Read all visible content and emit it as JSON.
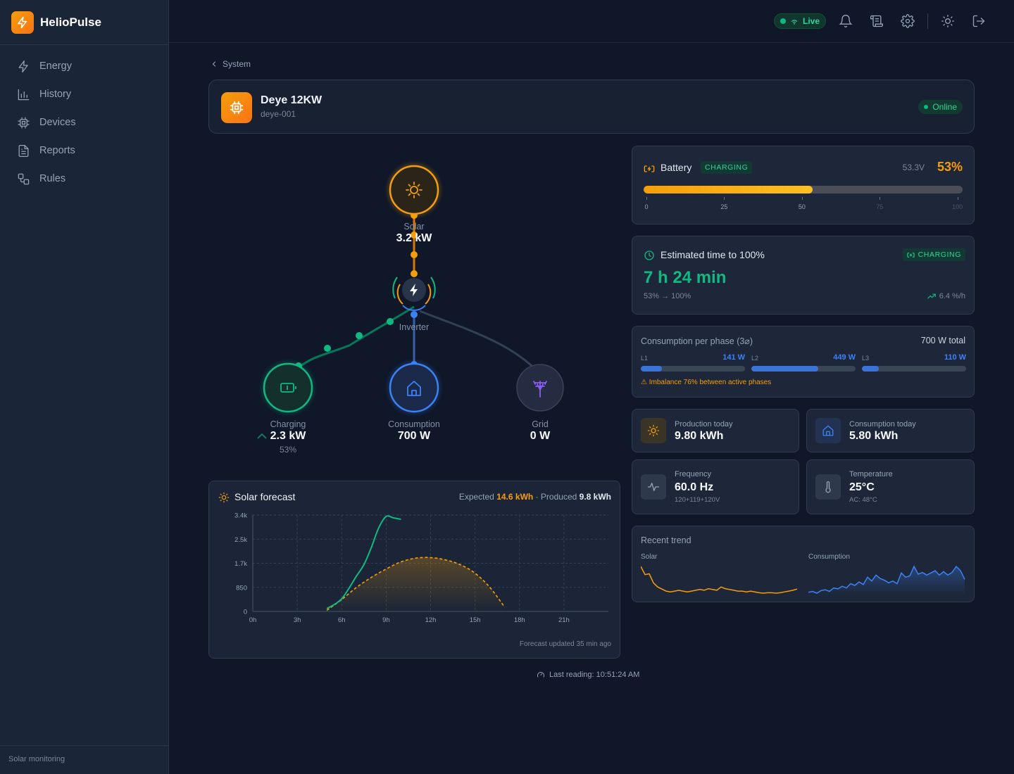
{
  "app": {
    "name": "HelioPulse",
    "footer": "Solar monitoring"
  },
  "colors": {
    "accent": "#f59e0b",
    "green": "#10b981",
    "blue": "#3b82f6",
    "purple": "#8b5cf6"
  },
  "sidebar": {
    "items": [
      {
        "label": "Energy",
        "icon": "bolt-icon"
      },
      {
        "label": "History",
        "icon": "bar-chart-icon"
      },
      {
        "label": "Devices",
        "icon": "chip-icon"
      },
      {
        "label": "Reports",
        "icon": "document-icon"
      },
      {
        "label": "Rules",
        "icon": "workflow-icon"
      }
    ]
  },
  "topbar": {
    "live_label": "Live"
  },
  "breadcrumb": {
    "label": "System"
  },
  "device": {
    "name": "Deye 12KW",
    "id": "deye-001",
    "status": "Online"
  },
  "flow": {
    "solar": {
      "label": "Solar",
      "value": "3.2 kW"
    },
    "inverter": {
      "label": "Inverter"
    },
    "battery": {
      "label": "Charging",
      "value": "2.3 kW",
      "sub": "53%"
    },
    "consumption": {
      "label": "Consumption",
      "value": "700 W"
    },
    "grid": {
      "label": "Grid",
      "value": "0 W"
    }
  },
  "battery": {
    "title": "Battery",
    "tag": "CHARGING",
    "voltage": "53.3V",
    "percent_label": "53%",
    "level": 0.53,
    "ticks": [
      "0",
      "25",
      "50",
      "75",
      "100"
    ]
  },
  "eta": {
    "title": "Estimated time to 100%",
    "tag": "CHARGING",
    "value": "7 h 24 min",
    "range": "53% → 100%",
    "rate": "6.4 %/h"
  },
  "phases": {
    "title": "Consumption per phase (3⌀)",
    "total": "700 W total",
    "items": [
      {
        "name": "L1",
        "value": "141 W",
        "level": 0.2
      },
      {
        "name": "L2",
        "value": "449 W",
        "level": 0.64
      },
      {
        "name": "L3",
        "value": "110 W",
        "level": 0.16
      }
    ],
    "warning": "⚠ Imbalance 76% between active phases"
  },
  "stats": {
    "production": {
      "label": "Production today",
      "value": "9.80 kWh"
    },
    "consumption": {
      "label": "Consumption today",
      "value": "5.80 kWh"
    },
    "frequency": {
      "label": "Frequency",
      "value": "60.0 Hz",
      "sub": "120+119+120V"
    },
    "temperature": {
      "label": "Temperature",
      "value": "25°C",
      "sub": "AC: 48°C"
    }
  },
  "trend": {
    "title": "Recent trend",
    "solar_label": "Solar",
    "consumption_label": "Consumption"
  },
  "forecast": {
    "title": "Solar forecast",
    "expected_label": "Expected",
    "expected_value": "14.6 kWh",
    "separator": "·",
    "produced_label": "Produced",
    "produced_value": "9.8 kWh",
    "updated": "Forecast updated 35 min ago"
  },
  "footer": {
    "last_reading": "Last reading: 10:51:24 AM"
  },
  "chart_data": {
    "type": "line",
    "title": "Solar forecast",
    "xlabel": "",
    "ylabel": "",
    "x_ticks": [
      "0h",
      "3h",
      "6h",
      "9h",
      "12h",
      "15h",
      "18h",
      "21h"
    ],
    "y_ticks": [
      "0",
      "850",
      "1.7k",
      "2.5k",
      "3.4k"
    ],
    "xlim": [
      0,
      24
    ],
    "ylim": [
      0,
      3400
    ],
    "grid": true,
    "series": [
      {
        "name": "Produced",
        "style": "solid",
        "color": "#10b981",
        "x": [
          5,
          6,
          7,
          7.5,
          8,
          8.5,
          9,
          9.5,
          10
        ],
        "y": [
          100,
          450,
          1250,
          1650,
          2250,
          2950,
          3350,
          3300,
          3250
        ]
      },
      {
        "name": "Expected",
        "style": "dashed",
        "color": "#f59e0b",
        "x": [
          5,
          6,
          7,
          8,
          9,
          10,
          11,
          12,
          13,
          14,
          15,
          16,
          17
        ],
        "y": [
          40,
          420,
          850,
          1200,
          1500,
          1750,
          1880,
          1900,
          1820,
          1650,
          1350,
          850,
          150
        ]
      }
    ]
  },
  "trend_data": {
    "solar": [
      80,
      60,
      62,
      40,
      30,
      25,
      20,
      18,
      20,
      22,
      20,
      18,
      20,
      22,
      24,
      22,
      26,
      24,
      22,
      30,
      26,
      24,
      22,
      20,
      20,
      18,
      20,
      18,
      16,
      15,
      16,
      16,
      15,
      16,
      18,
      20,
      22,
      25
    ],
    "consumption": [
      10,
      12,
      8,
      14,
      16,
      12,
      20,
      18,
      24,
      20,
      30,
      26,
      34,
      28,
      45,
      36,
      50,
      42,
      38,
      32,
      36,
      30,
      55,
      45,
      48,
      70,
      52,
      56,
      50,
      55,
      60,
      50,
      58,
      50,
      56,
      70,
      60,
      40
    ]
  }
}
